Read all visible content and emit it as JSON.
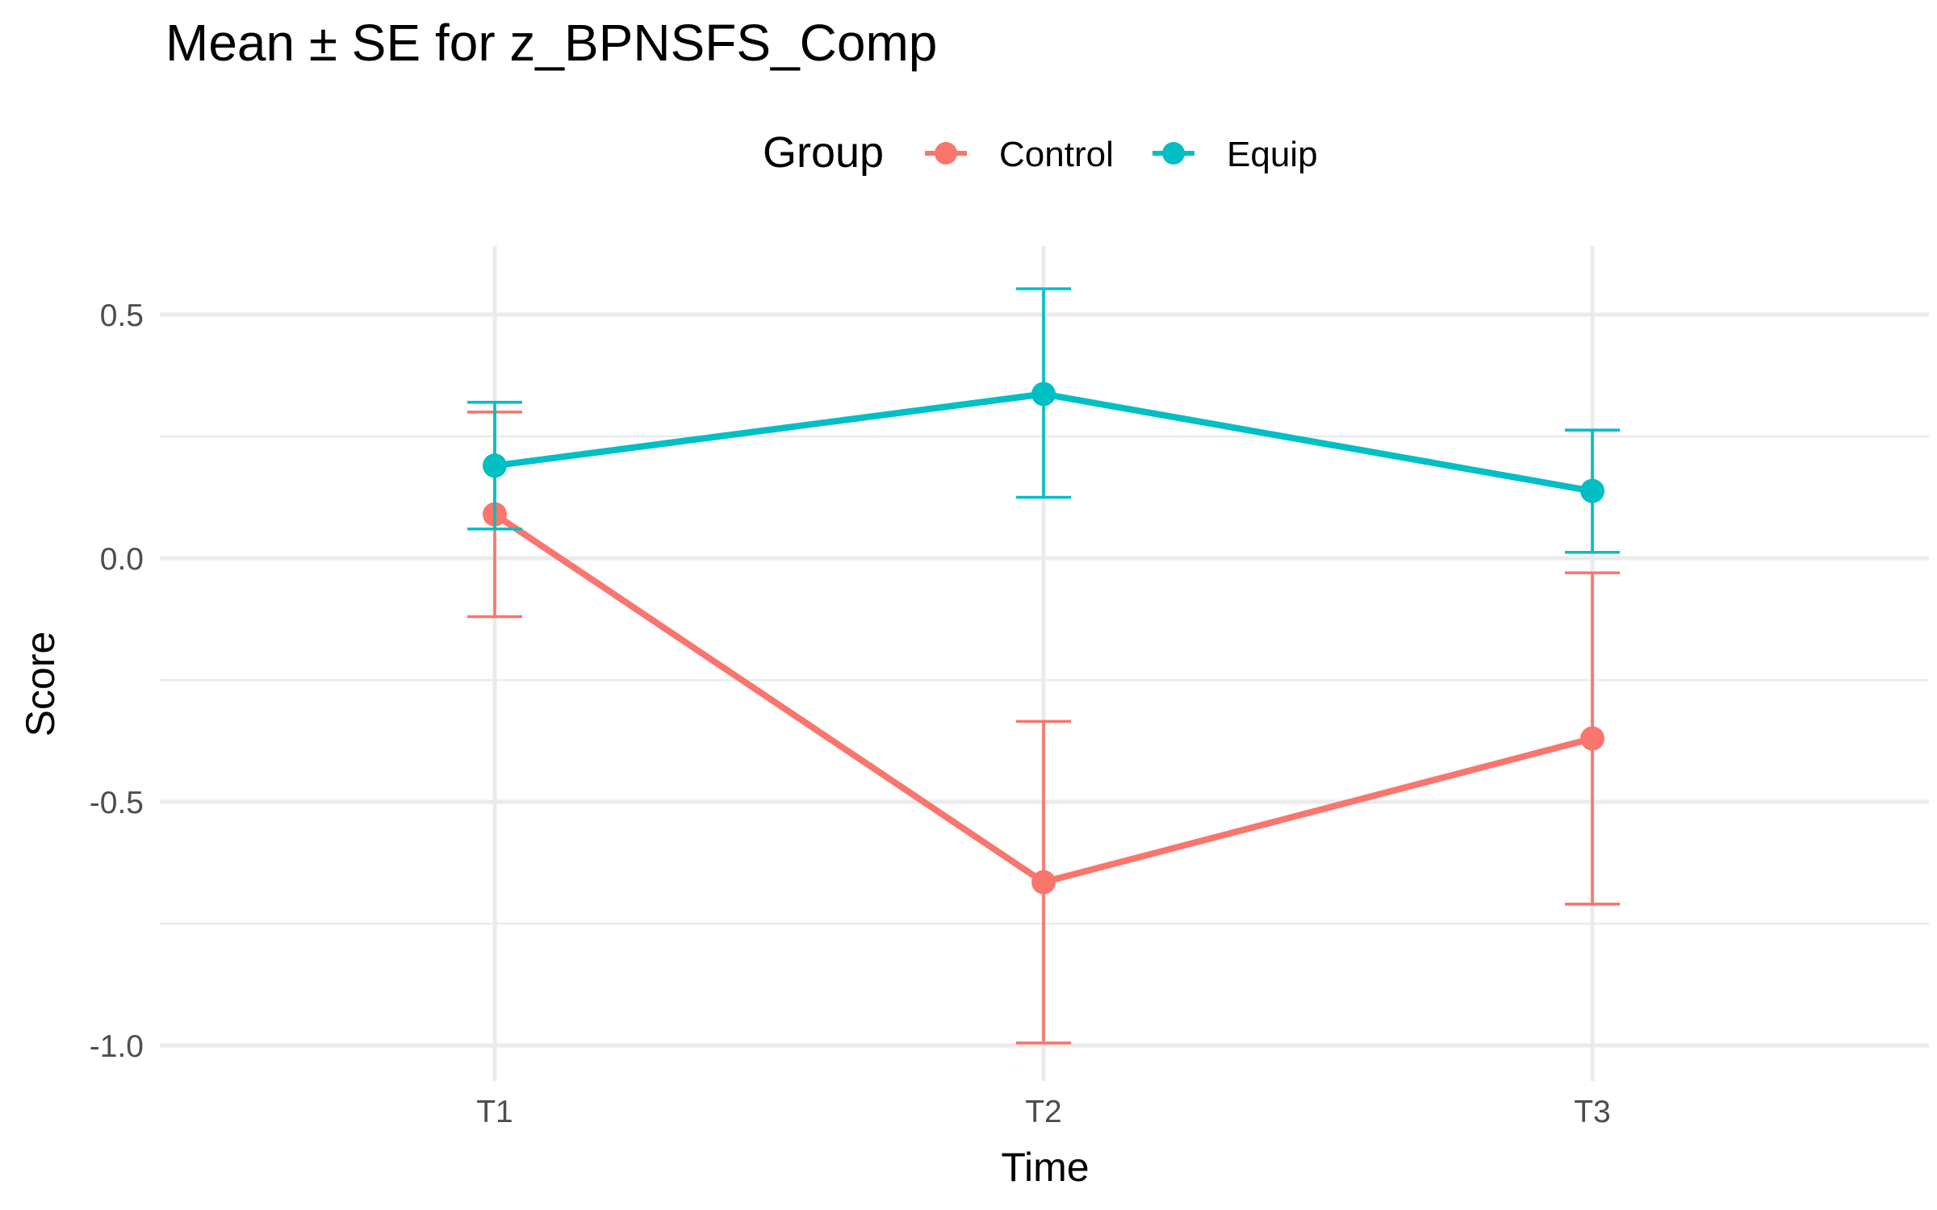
{
  "chart_data": {
    "type": "line",
    "title": "Mean ± SE for z_BPNSFS_Comp",
    "xlabel": "Time",
    "ylabel": "Score",
    "categories": [
      "T1",
      "T2",
      "T3"
    ],
    "ylim": [
      -1.07,
      0.62
    ],
    "yticks": [
      0.5,
      0.0,
      -0.5,
      -1.0
    ],
    "ytick_labels": [
      "0.5",
      "0.0",
      "-0.5",
      "-1.0"
    ],
    "grid": true,
    "legend": {
      "title": "Group",
      "position": "top",
      "entries": [
        "Control",
        "Equip"
      ]
    },
    "series": [
      {
        "name": "Control",
        "color": "#F8766D",
        "values": [
          0.09,
          -0.665,
          -0.37
        ],
        "lower": [
          -0.12,
          -0.995,
          -0.71
        ],
        "upper": [
          0.3,
          -0.335,
          -0.03
        ]
      },
      {
        "name": "Equip",
        "color": "#00BFC4",
        "values": [
          0.19,
          0.337,
          0.138
        ],
        "lower": [
          0.06,
          0.125,
          0.012
        ],
        "upper": [
          0.32,
          0.553,
          0.263
        ]
      }
    ]
  }
}
